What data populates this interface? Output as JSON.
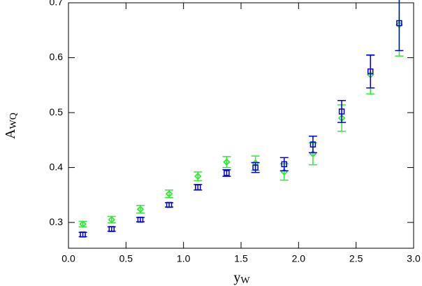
{
  "chart_data": {
    "type": "errorbar-scatter",
    "xlabel": "y",
    "xlabel_sub": "W",
    "ylabel": "A",
    "ylabel_sub": "WQ",
    "xlim": [
      0,
      3.0
    ],
    "ylim": [
      0.253,
      0.7
    ],
    "xticks": [
      {
        "value": 0,
        "label": "0.0"
      },
      0.5,
      {
        "value": 1,
        "label": "1.0"
      },
      1.5,
      {
        "value": 2,
        "label": "2.0"
      },
      2.5,
      {
        "value": 3,
        "label": "3.0"
      }
    ],
    "yticks": [
      0.3,
      0.4,
      0.5,
      0.6,
      0.7
    ],
    "x": [
      0.125,
      0.375,
      0.625,
      0.875,
      1.125,
      1.375,
      1.625,
      1.875,
      2.125,
      2.375,
      2.625,
      2.875
    ],
    "series": [
      {
        "color": "#33e833",
        "marker": "diamond",
        "values": [
          0.297,
          0.305,
          0.324,
          0.352,
          0.384,
          0.41,
          0.408,
          0.392,
          0.425,
          0.49,
          0.569,
          0.66
        ],
        "errors": [
          0.005,
          0.006,
          0.007,
          0.007,
          0.008,
          0.01,
          0.013,
          0.015,
          0.02,
          0.024,
          0.035,
          0.057
        ]
      },
      {
        "color": "#0000d0",
        "marker": "square",
        "values": [
          0.278,
          0.288,
          0.305,
          0.332,
          0.364,
          0.39,
          0.4,
          0.406,
          0.442,
          0.502,
          0.575,
          0.663
        ],
        "errors": [
          0.004,
          0.004,
          0.004,
          0.004,
          0.005,
          0.006,
          0.009,
          0.012,
          0.015,
          0.02,
          0.03,
          0.05
        ]
      }
    ]
  }
}
